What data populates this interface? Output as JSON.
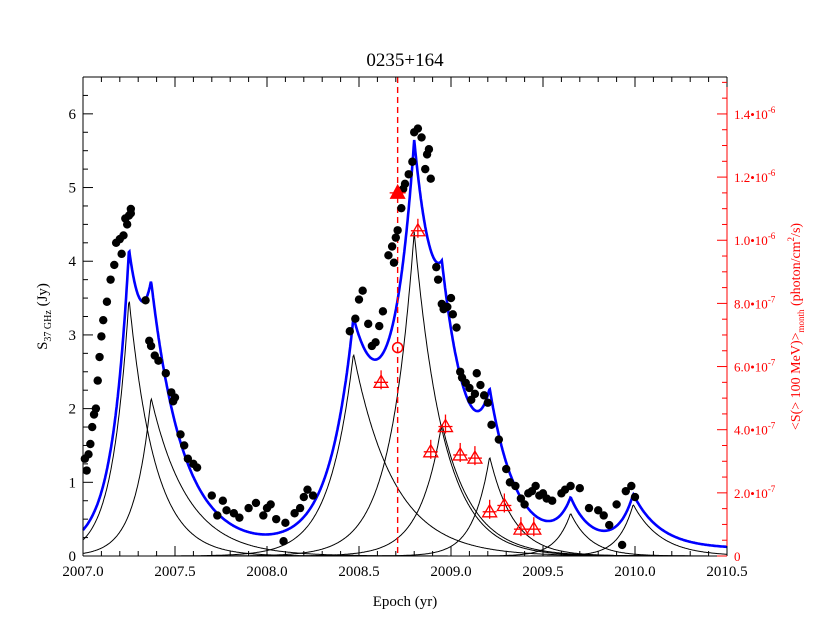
{
  "chart_data": {
    "type": "scatter",
    "title": "0235+164",
    "xlabel": "Epoch (yr)",
    "ylabel_left": {
      "main": "S",
      "sub": "37 GHz",
      "suffix": " (Jy)"
    },
    "ylabel_right": {
      "p1": "<S(> 100 MeV)>",
      "sub": "month",
      "p2": " (photon/cm",
      "sup": "2",
      "p3": "/s)"
    },
    "xlim": [
      2007.0,
      2010.5
    ],
    "ylim_left": [
      0,
      6.5
    ],
    "ylim_right": [
      0,
      1.517e-06
    ],
    "x_ticks": [
      "2007.0",
      "2007.5",
      "2008.0",
      "2008.5",
      "2009.0",
      "2009.5",
      "2010.0",
      "2010.5"
    ],
    "y_left_ticks": [
      "0",
      "1",
      "2",
      "3",
      "4",
      "5",
      "6"
    ],
    "y_right_ticks": [
      {
        "m": "0",
        "e": ""
      },
      {
        "m": "2.0•10",
        "e": "-7"
      },
      {
        "m": "4.0•10",
        "e": "-7"
      },
      {
        "m": "6.0•10",
        "e": "-7"
      },
      {
        "m": "8.0•10",
        "e": "-7"
      },
      {
        "m": "1.0•10",
        "e": "-6"
      },
      {
        "m": "1.2•10",
        "e": "-6"
      },
      {
        "m": "1.4•10",
        "e": "-6"
      }
    ],
    "colors": {
      "radio": "#000000",
      "model": "#0000ff",
      "gamma": "#ff0000",
      "components": "#000000"
    },
    "vline_x": 2008.71,
    "components": [
      {
        "t0": 2007.25,
        "amp": 3.5,
        "rise": 0.09,
        "decay": 0.14
      },
      {
        "t0": 2007.37,
        "amp": 2.15,
        "rise": 0.09,
        "decay": 0.2
      },
      {
        "t0": 2008.47,
        "amp": 2.75,
        "rise": 0.13,
        "decay": 0.22
      },
      {
        "t0": 2008.8,
        "amp": 4.4,
        "rise": 0.13,
        "decay": 0.16
      },
      {
        "t0": 2008.95,
        "amp": 1.8,
        "rise": 0.12,
        "decay": 0.17
      },
      {
        "t0": 2009.21,
        "amp": 1.35,
        "rise": 0.09,
        "decay": 0.13
      },
      {
        "t0": 2009.65,
        "amp": 0.58,
        "rise": 0.08,
        "decay": 0.11
      },
      {
        "t0": 2009.99,
        "amp": 0.7,
        "rise": 0.08,
        "decay": 0.15
      }
    ],
    "model_baseline": 0.1,
    "radio_points": [
      [
        2007.01,
        1.32
      ],
      [
        2007.02,
        1.16
      ],
      [
        2007.03,
        1.38
      ],
      [
        2007.04,
        1.52
      ],
      [
        2007.05,
        1.75
      ],
      [
        2007.06,
        1.92
      ],
      [
        2007.07,
        2.0
      ],
      [
        2007.08,
        2.38
      ],
      [
        2007.09,
        2.7
      ],
      [
        2007.1,
        2.98
      ],
      [
        2007.11,
        3.2
      ],
      [
        2007.13,
        3.45
      ],
      [
        2007.15,
        3.75
      ],
      [
        2007.17,
        3.95
      ],
      [
        2007.18,
        4.25
      ],
      [
        2007.2,
        4.3
      ],
      [
        2007.21,
        4.1
      ],
      [
        2007.22,
        4.35
      ],
      [
        2007.23,
        4.58
      ],
      [
        2007.24,
        4.5
      ],
      [
        2007.25,
        4.62
      ],
      [
        2007.26,
        4.71
      ],
      [
        2007.26,
        4.65
      ],
      [
        2007.34,
        3.47
      ],
      [
        2007.36,
        2.92
      ],
      [
        2007.37,
        2.85
      ],
      [
        2007.39,
        2.72
      ],
      [
        2007.41,
        2.65
      ],
      [
        2007.45,
        2.48
      ],
      [
        2007.48,
        2.22
      ],
      [
        2007.49,
        2.1
      ],
      [
        2007.5,
        2.15
      ],
      [
        2007.53,
        1.65
      ],
      [
        2007.55,
        1.5
      ],
      [
        2007.57,
        1.32
      ],
      [
        2007.6,
        1.25
      ],
      [
        2007.62,
        1.2
      ],
      [
        2007.7,
        0.82
      ],
      [
        2007.73,
        0.55
      ],
      [
        2007.76,
        0.75
      ],
      [
        2007.78,
        0.62
      ],
      [
        2007.82,
        0.58
      ],
      [
        2007.85,
        0.52
      ],
      [
        2007.9,
        0.65
      ],
      [
        2007.94,
        0.72
      ],
      [
        2007.98,
        0.55
      ],
      [
        2008.0,
        0.65
      ],
      [
        2008.02,
        0.7
      ],
      [
        2008.05,
        0.5
      ],
      [
        2008.09,
        0.2
      ],
      [
        2008.1,
        0.45
      ],
      [
        2008.15,
        0.58
      ],
      [
        2008.18,
        0.65
      ],
      [
        2008.2,
        0.8
      ],
      [
        2008.22,
        0.9
      ],
      [
        2008.25,
        0.82
      ],
      [
        2008.45,
        3.05
      ],
      [
        2008.48,
        3.22
      ],
      [
        2008.5,
        3.48
      ],
      [
        2008.52,
        3.6
      ],
      [
        2008.55,
        3.15
      ],
      [
        2008.57,
        2.85
      ],
      [
        2008.59,
        2.9
      ],
      [
        2008.61,
        3.12
      ],
      [
        2008.63,
        3.32
      ],
      [
        2008.66,
        4.08
      ],
      [
        2008.68,
        4.2
      ],
      [
        2008.69,
        3.98
      ],
      [
        2008.7,
        4.32
      ],
      [
        2008.71,
        4.42
      ],
      [
        2008.73,
        4.72
      ],
      [
        2008.74,
        4.98
      ],
      [
        2008.75,
        5.05
      ],
      [
        2008.77,
        5.18
      ],
      [
        2008.79,
        5.35
      ],
      [
        2008.8,
        5.75
      ],
      [
        2008.82,
        5.8
      ],
      [
        2008.84,
        5.68
      ],
      [
        2008.86,
        5.25
      ],
      [
        2008.87,
        5.45
      ],
      [
        2008.88,
        5.52
      ],
      [
        2008.89,
        5.12
      ],
      [
        2008.92,
        3.92
      ],
      [
        2008.93,
        3.75
      ],
      [
        2008.95,
        3.42
      ],
      [
        2008.96,
        3.35
      ],
      [
        2008.98,
        3.38
      ],
      [
        2009.0,
        3.5
      ],
      [
        2009.01,
        3.28
      ],
      [
        2009.03,
        3.1
      ],
      [
        2009.05,
        2.5
      ],
      [
        2009.06,
        2.42
      ],
      [
        2009.08,
        2.35
      ],
      [
        2009.1,
        2.28
      ],
      [
        2009.11,
        2.12
      ],
      [
        2009.13,
        2.2
      ],
      [
        2009.14,
        2.48
      ],
      [
        2009.16,
        2.32
      ],
      [
        2009.18,
        2.18
      ],
      [
        2009.2,
        2.08
      ],
      [
        2009.22,
        1.78
      ],
      [
        2009.26,
        1.58
      ],
      [
        2009.3,
        1.18
      ],
      [
        2009.32,
        1.0
      ],
      [
        2009.35,
        0.95
      ],
      [
        2009.38,
        0.78
      ],
      [
        2009.4,
        0.7
      ],
      [
        2009.42,
        0.85
      ],
      [
        2009.44,
        0.88
      ],
      [
        2009.46,
        0.95
      ],
      [
        2009.48,
        0.82
      ],
      [
        2009.5,
        0.85
      ],
      [
        2009.52,
        0.78
      ],
      [
        2009.55,
        0.75
      ],
      [
        2009.6,
        0.85
      ],
      [
        2009.62,
        0.9
      ],
      [
        2009.65,
        0.95
      ],
      [
        2009.7,
        0.92
      ],
      [
        2009.75,
        0.65
      ],
      [
        2009.8,
        0.62
      ],
      [
        2009.83,
        0.55
      ],
      [
        2009.86,
        0.42
      ],
      [
        2009.9,
        0.7
      ],
      [
        2009.95,
        0.88
      ],
      [
        2009.93,
        0.15
      ],
      [
        2009.98,
        0.95
      ],
      [
        2010.0,
        0.8
      ]
    ],
    "gamma_filled": [
      [
        2008.71,
        1.15e-06
      ]
    ],
    "gamma_open_circle": [
      [
        2008.71,
        6.6e-07
      ]
    ],
    "gamma_upper": [
      [
        2008.62,
        5.5e-07
      ],
      [
        2008.82,
        1.03e-06
      ],
      [
        2008.89,
        3.3e-07
      ],
      [
        2008.97,
        4.1e-07
      ],
      [
        2009.05,
        3.2e-07
      ],
      [
        2009.13,
        3.1e-07
      ],
      [
        2009.21,
        1.4e-07
      ],
      [
        2009.29,
        1.6e-07
      ],
      [
        2009.38,
        8.5e-08
      ],
      [
        2009.45,
        8.5e-08
      ]
    ]
  }
}
